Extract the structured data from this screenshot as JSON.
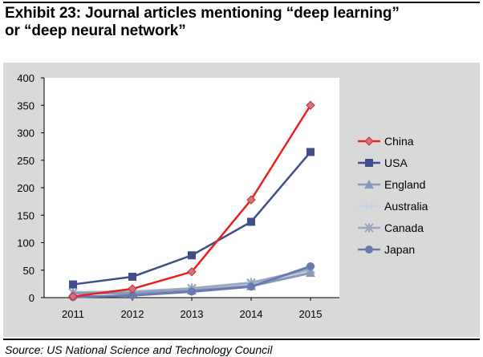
{
  "title": "Exhibit 23: Journal articles mentioning “deep learning”\nor “deep neural network”",
  "source": "Source: US National Science and Technology Council",
  "chart_data": {
    "type": "line",
    "title": "Exhibit 23: Journal articles mentioning “deep learning” or “deep neural network”",
    "xlabel": "",
    "ylabel": "",
    "categories": [
      "2011",
      "2012",
      "2013",
      "2014",
      "2015"
    ],
    "ylim": [
      0,
      400
    ],
    "yticks": [
      0,
      50,
      100,
      150,
      200,
      250,
      300,
      350,
      400
    ],
    "grid": false,
    "legend": "right",
    "series": [
      {
        "name": "China",
        "values": [
          2,
          16,
          47,
          178,
          350
        ],
        "color": "#e8211d",
        "marker": "diamond"
      },
      {
        "name": "USA",
        "values": [
          24,
          38,
          77,
          138,
          265
        ],
        "color": "#3f5088",
        "marker": "square"
      },
      {
        "name": "England",
        "values": [
          8,
          8,
          13,
          21,
          45
        ],
        "color": "#8899bd",
        "marker": "triangle"
      },
      {
        "name": "Australia",
        "values": [
          10,
          12,
          16,
          25,
          50
        ],
        "color": "#c8d3e6",
        "marker": "x"
      },
      {
        "name": "Canada",
        "values": [
          9,
          10,
          17,
          27,
          52
        ],
        "color": "#9da7bd",
        "marker": "star"
      },
      {
        "name": "Japan",
        "values": [
          1,
          4,
          11,
          20,
          57
        ],
        "color": "#6a7ab0",
        "marker": "circle"
      }
    ]
  }
}
